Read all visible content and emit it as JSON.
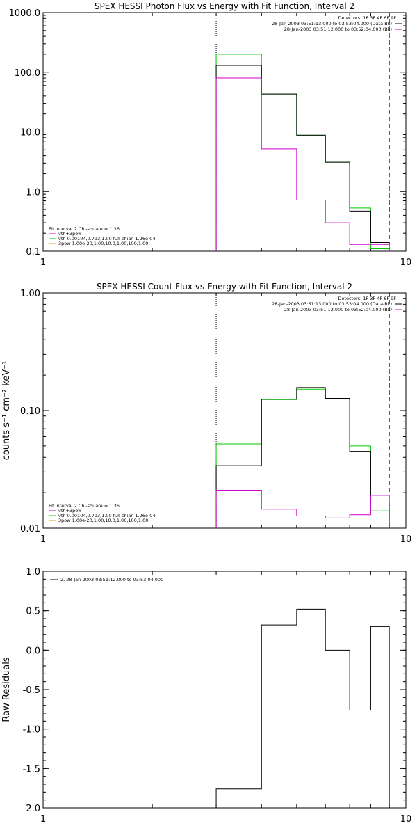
{
  "figure": {
    "colors": {
      "black": "#000000",
      "magenta": "#d000d0",
      "green": "#00c800",
      "orange": "#d8a000"
    }
  },
  "chart_data": [
    {
      "type": "line",
      "step": true,
      "title": "SPEX HESSI Photon Flux vs Energy with Fit Function, Interval 2",
      "xscale": "log",
      "yscale": "log",
      "xlim": [
        1,
        10
      ],
      "ylim": [
        0.1,
        1000
      ],
      "xticks": [
        {
          "v": 1,
          "label": "1"
        },
        {
          "v": 10,
          "label": "10"
        }
      ],
      "yticks": [
        {
          "v": 0.1,
          "label": "0.1"
        },
        {
          "v": 1,
          "label": "1.0"
        },
        {
          "v": 10,
          "label": "10.0"
        },
        {
          "v": 100,
          "label": "100.0"
        },
        {
          "v": 1000,
          "label": "1000.0"
        }
      ],
      "edges": [
        3,
        4,
        5,
        6,
        7,
        8,
        9
      ],
      "vlines": [
        {
          "x": 3,
          "style": "dotted"
        },
        {
          "x": 9,
          "style": "dashed"
        }
      ],
      "info": [
        "Detectors: 1F 3F 4F 6F 9F",
        "28-Jan-2003 03:51:13.000 to 03:53:04.000 (Data-Bk)",
        "28-Jan-2003 03:51:12.000 to 03:52:04.000 (Bk)"
      ],
      "info_marks": [
        "#000000",
        "#d000d0"
      ],
      "fit_legend": [
        {
          "text": "Fit Interval  2    Chi-square = 1.36",
          "color": ""
        },
        {
          "text": "vth+3pow",
          "color": "#d000d0"
        },
        {
          "text": "vth 0.00104,0.793,1.00   full chian 1.26e-04",
          "color": "#00c800"
        },
        {
          "text": "3pow 1.00e-20,1.00,10.0,1.00,100,1.00",
          "color": "#d8a000"
        }
      ],
      "series": [
        {
          "color": "#00c800",
          "values": [
            200,
            43,
            8.6,
            3.1,
            0.53,
            0.11
          ]
        },
        {
          "color": "#000000",
          "values": [
            130,
            43,
            8.8,
            3.1,
            0.47,
            0.14
          ]
        },
        {
          "color": "#d000d0",
          "values": [
            80,
            5.2,
            0.72,
            0.3,
            0.13,
            0.13
          ]
        }
      ]
    },
    {
      "type": "line",
      "step": true,
      "title": "SPEX HESSI Count Flux vs Energy with Fit Function, Interval 2",
      "ylabel": "counts s⁻¹ cm⁻² keV⁻¹",
      "xscale": "log",
      "yscale": "log",
      "xlim": [
        1,
        10
      ],
      "ylim": [
        0.01,
        1
      ],
      "xticks": [
        {
          "v": 1,
          "label": "1"
        },
        {
          "v": 10,
          "label": "10"
        }
      ],
      "yticks": [
        {
          "v": 0.01,
          "label": "0.01"
        },
        {
          "v": 0.1,
          "label": "0.10"
        },
        {
          "v": 1,
          "label": "1.00"
        }
      ],
      "edges": [
        3,
        4,
        5,
        6,
        7,
        8,
        9
      ],
      "vlines": [
        {
          "x": 3,
          "style": "dotted"
        },
        {
          "x": 9,
          "style": "dashed"
        }
      ],
      "info": [
        "Detectors: 1F 3F 4F 6F 9F",
        "28-Jan-2003 03:51:13.000 to 03:53:04.000 (Data-Bk)",
        "28-Jan-2003 03:51:12.000 to 03:52:04.000 (Bk)"
      ],
      "info_marks": [
        "#000000",
        "#d000d0"
      ],
      "fit_legend": [
        {
          "text": "Fit Interval  2    Chi-square = 1.36",
          "color": ""
        },
        {
          "text": "vth+3pow",
          "color": "#d000d0"
        },
        {
          "text": "vth 0.00104,0.793,1.00   full chian 1.26e-04",
          "color": "#00c800"
        },
        {
          "text": "3pow 1.00e-20,1.00,10.0,1.00,100,1.00",
          "color": "#d8a000"
        }
      ],
      "series": [
        {
          "color": "#00c800",
          "values": [
            0.052,
            0.124,
            0.152,
            0.127,
            0.05,
            0.014
          ]
        },
        {
          "color": "#000000",
          "values": [
            0.034,
            0.125,
            0.157,
            0.127,
            0.045,
            0.016
          ]
        },
        {
          "color": "#d000d0",
          "values": [
            0.021,
            0.0145,
            0.0127,
            0.0122,
            0.013,
            0.019
          ]
        }
      ]
    },
    {
      "type": "line",
      "step": true,
      "title": "",
      "ylabel": "Raw Residuals",
      "xscale": "log",
      "yscale": "linear",
      "xlim": [
        1,
        10
      ],
      "ylim": [
        -2,
        1
      ],
      "xticks": [
        {
          "v": 1,
          "label": "1"
        },
        {
          "v": 10,
          "label": "10"
        }
      ],
      "yticks": [
        {
          "v": -2,
          "label": "-2.0"
        },
        {
          "v": -1.5,
          "label": "-1.5"
        },
        {
          "v": -1,
          "label": "-1.0"
        },
        {
          "v": -0.5,
          "label": "-0.5"
        },
        {
          "v": 0,
          "label": "0.0"
        },
        {
          "v": 0.5,
          "label": "0.5"
        },
        {
          "v": 1,
          "label": "1.0"
        }
      ],
      "edges": [
        3,
        4,
        5,
        6,
        7,
        8,
        9
      ],
      "vlines": [],
      "info": [],
      "info_marks": [],
      "legend": [
        {
          "text": "2, 28-Jan-2003 03:51:12.000 to 03:53:04.000",
          "color": "#000000"
        }
      ],
      "series": [
        {
          "color": "#000000",
          "values": [
            -1.76,
            0.32,
            0.52,
            0.0,
            -0.76,
            0.3
          ]
        }
      ]
    }
  ]
}
